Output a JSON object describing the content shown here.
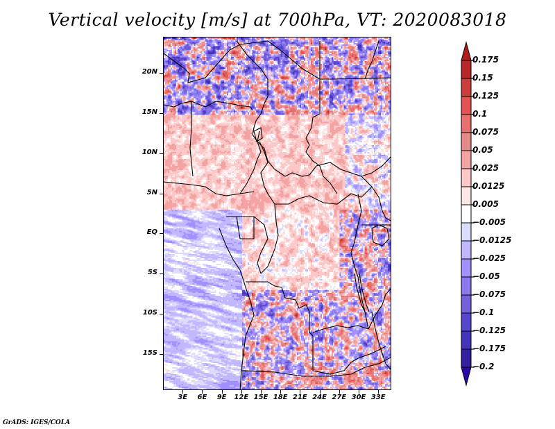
{
  "chart_data": {
    "type": "heatmap",
    "title": "Vertical velocity [m/s] at 700hPa, VT: 2020083018",
    "variable": "Vertical velocity",
    "units": "m/s",
    "level": "700hPa",
    "valid_time": "2020083018",
    "projection": "lat-lon",
    "xlim": [
      0,
      35
    ],
    "ylim": [
      -19.5,
      24.5
    ],
    "x_ticks": [
      {
        "value": 3,
        "label": "3E"
      },
      {
        "value": 6,
        "label": "6E"
      },
      {
        "value": 9,
        "label": "9E"
      },
      {
        "value": 12,
        "label": "12E"
      },
      {
        "value": 15,
        "label": "15E"
      },
      {
        "value": 18,
        "label": "18E"
      },
      {
        "value": 21,
        "label": "21E"
      },
      {
        "value": 24,
        "label": "24E"
      },
      {
        "value": 27,
        "label": "27E"
      },
      {
        "value": 30,
        "label": "30E"
      },
      {
        "value": 33,
        "label": "33E"
      }
    ],
    "y_ticks": [
      {
        "value": 20,
        "label": "20N"
      },
      {
        "value": 15,
        "label": "15N"
      },
      {
        "value": 10,
        "label": "10N"
      },
      {
        "value": 5,
        "label": "5N"
      },
      {
        "value": 0,
        "label": "EQ"
      },
      {
        "value": -5,
        "label": "5S"
      },
      {
        "value": -10,
        "label": "10S"
      },
      {
        "value": -15,
        "label": "15S"
      }
    ],
    "colorbar": {
      "orientation": "vertical",
      "position": "right",
      "extend": "both",
      "levels": [
        "0.175",
        "0.15",
        "0.125",
        "0.1",
        "0.075",
        "0.05",
        "0.025",
        "0.0125",
        "0.005",
        "-0.005",
        "-0.0125",
        "-0.025",
        "-0.05",
        "-0.075",
        "-0.1",
        "-0.125",
        "-0.175",
        "-0.2"
      ],
      "colors": [
        "#b21c1c",
        "#b8282a",
        "#cc3e3e",
        "#e45252",
        "#e86f6f",
        "#e68a8a",
        "#f4a3a3",
        "#fbc7c7",
        "#fde6e6",
        "#ffffff",
        "#dcdcfc",
        "#c2b8ff",
        "#a290ff",
        "#8a78ec",
        "#7560dc",
        "#5846cf",
        "#4533bc",
        "#33209f",
        "#2a0aa6"
      ]
    },
    "regional_pattern": {
      "sahara_north": "strong mixed positive/negative (up to >0.175 and < -0.2)",
      "sahel_cameroon_car": "weak positive (0.005-0.05)",
      "atlantic_south": "weak negative bands (-0.005 to -0.05)",
      "angola_zambia_east_africa": "strong mixed positive/negative"
    }
  },
  "footer": {
    "credit": "GrADS: IGES/COLA"
  }
}
